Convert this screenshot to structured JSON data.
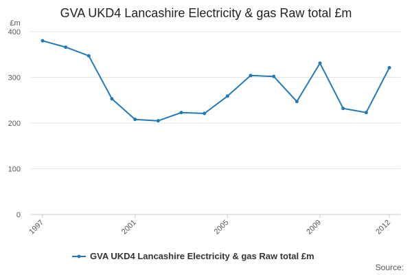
{
  "chart_data": {
    "type": "line",
    "title": "GVA UKD4 Lancashire Electricity & gas Raw total £m",
    "y_unit": "£m",
    "x": [
      1997,
      1998,
      1999,
      2000,
      2001,
      2002,
      2003,
      2004,
      2005,
      2006,
      2007,
      2008,
      2009,
      2010,
      2011,
      2012
    ],
    "x_tick_labels": [
      "1997",
      "2001",
      "2005",
      "2009",
      "2012"
    ],
    "y_ticks": [
      0,
      100,
      200,
      300,
      400
    ],
    "ylim": [
      0,
      400
    ],
    "grid": true,
    "legend_position": "bottom",
    "series": [
      {
        "name": "GVA UKD4 Lancashire Electricity & gas Raw total £m",
        "color": "#1f7ab8",
        "values": [
          380,
          366,
          347,
          253,
          208,
          205,
          223,
          221,
          259,
          304,
          302,
          247,
          331,
          232,
          223,
          321
        ]
      }
    ]
  },
  "footer": {
    "source_label": "Source:"
  }
}
